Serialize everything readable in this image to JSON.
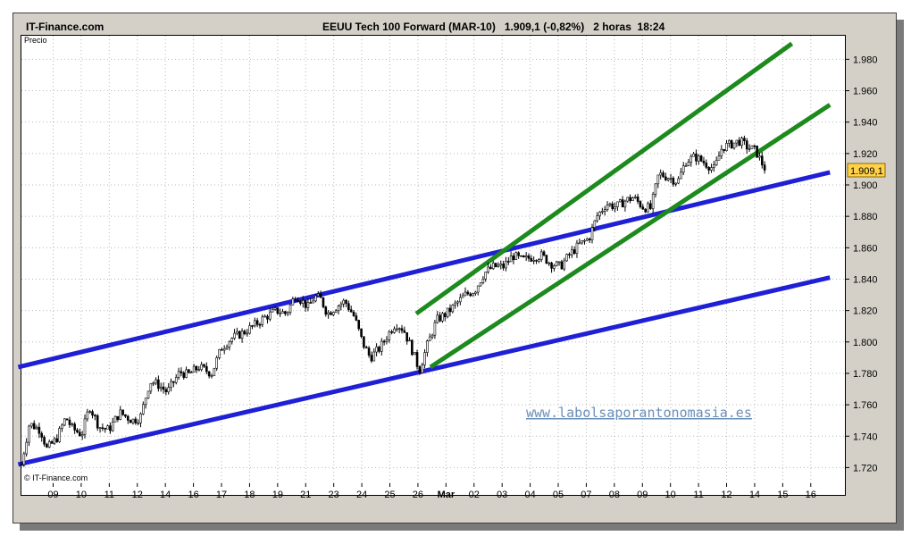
{
  "header": {
    "brand": "IT-Finance.com",
    "title": "EEUU Tech 100 Forward (MAR-10)   1.909,1 (-0,82%)   2 horas  18:24"
  },
  "chart_data": {
    "type": "candlestick",
    "title": "EEUU Tech 100 Forward (MAR-10)",
    "ylabel": "Precio",
    "copyright": "© IT-Finance.com",
    "watermark": "www.labolsaporantonomasia.es",
    "last_price_label": "1.909,1",
    "last_price": 1909.1,
    "change": "-0,82%",
    "interval": "2 horas",
    "time": "18:24",
    "ylim": [
      1710,
      1995
    ],
    "yticks": [
      1720,
      1740,
      1760,
      1780,
      1800,
      1820,
      1840,
      1860,
      1880,
      1900,
      1920,
      1940,
      1960,
      1980
    ],
    "ytick_labels": [
      "1.720",
      "1.740",
      "1.760",
      "1.780",
      "1.800",
      "1.820",
      "1.840",
      "1.860",
      "1.880",
      "1.900",
      "1.920",
      "1.940",
      "1.960",
      "1.980"
    ],
    "xtick_labels": [
      "09",
      "10",
      "11",
      "12",
      "14",
      "16",
      "17",
      "18",
      "19",
      "21",
      "23",
      "24",
      "25",
      "26",
      "Mar",
      "02",
      "03",
      "04",
      "05",
      "07",
      "08",
      "09",
      "10",
      "11",
      "12",
      "14",
      "15",
      "16"
    ],
    "price_path": [
      [
        0,
        1722
      ],
      [
        0.5,
        1748
      ],
      [
        1.2,
        1744
      ],
      [
        1.6,
        1732
      ],
      [
        2.2,
        1738
      ],
      [
        2.8,
        1752
      ],
      [
        3.2,
        1745
      ],
      [
        3.8,
        1741
      ],
      [
        4.3,
        1759
      ],
      [
        4.9,
        1746
      ],
      [
        5.5,
        1744
      ],
      [
        6.2,
        1755
      ],
      [
        7.0,
        1750
      ],
      [
        7.5,
        1752
      ],
      [
        8.1,
        1775
      ],
      [
        8.6,
        1773
      ],
      [
        9.2,
        1768
      ],
      [
        10.0,
        1781
      ],
      [
        10.5,
        1779
      ],
      [
        11.2,
        1784
      ],
      [
        12.0,
        1780
      ],
      [
        12.6,
        1796
      ],
      [
        13.2,
        1802
      ],
      [
        14.0,
        1806
      ],
      [
        14.6,
        1810
      ],
      [
        15.4,
        1816
      ],
      [
        16.1,
        1820
      ],
      [
        16.7,
        1818
      ],
      [
        17.3,
        1830
      ],
      [
        17.7,
        1826
      ],
      [
        18.1,
        1822
      ],
      [
        18.5,
        1829
      ],
      [
        18.9,
        1827
      ],
      [
        19.3,
        1818
      ],
      [
        19.8,
        1822
      ],
      [
        20.4,
        1826
      ],
      [
        21.0,
        1816
      ],
      [
        21.5,
        1800
      ],
      [
        22.0,
        1790
      ],
      [
        22.6,
        1796
      ],
      [
        23.2,
        1806
      ],
      [
        23.6,
        1812
      ],
      [
        24.1,
        1808
      ],
      [
        24.6,
        1796
      ],
      [
        25.1,
        1782
      ],
      [
        25.6,
        1798
      ],
      [
        26.2,
        1814
      ],
      [
        26.8,
        1818
      ],
      [
        27.4,
        1824
      ],
      [
        28.0,
        1830
      ],
      [
        28.6,
        1833
      ],
      [
        29.2,
        1844
      ],
      [
        29.8,
        1848
      ],
      [
        30.4,
        1848
      ],
      [
        31.0,
        1855
      ],
      [
        31.6,
        1852
      ],
      [
        32.2,
        1854
      ],
      [
        32.8,
        1855
      ],
      [
        33.4,
        1850
      ],
      [
        34.0,
        1848
      ],
      [
        34.6,
        1856
      ],
      [
        35.2,
        1862
      ],
      [
        35.8,
        1866
      ],
      [
        36.3,
        1880
      ],
      [
        36.9,
        1888
      ],
      [
        37.5,
        1886
      ],
      [
        38.1,
        1890
      ],
      [
        38.6,
        1892
      ],
      [
        39.2,
        1886
      ],
      [
        39.7,
        1885
      ],
      [
        40.2,
        1907
      ],
      [
        40.8,
        1905
      ],
      [
        41.4,
        1902
      ],
      [
        41.9,
        1915
      ],
      [
        42.5,
        1918
      ],
      [
        43.1,
        1914
      ],
      [
        43.7,
        1910
      ],
      [
        44.2,
        1924
      ],
      [
        44.8,
        1926
      ],
      [
        45.3,
        1928
      ],
      [
        45.8,
        1924
      ],
      [
        46.3,
        1922
      ],
      [
        46.8,
        1912
      ],
      [
        47.0,
        1909.1
      ]
    ],
    "lines": [
      {
        "name": "blue-upper-channel",
        "color": "#1f1fd6",
        "from": [
          -0.2,
          1784
        ],
        "to": [
          51,
          1908
        ]
      },
      {
        "name": "blue-lower-channel",
        "color": "#1f1fd6",
        "from": [
          -0.2,
          1722
        ],
        "to": [
          51,
          1841
        ]
      },
      {
        "name": "green-upper-channel",
        "color": "#1d8a1d",
        "from": [
          24.9,
          1818
        ],
        "to": [
          48.6,
          1990
        ]
      },
      {
        "name": "green-lower-channel",
        "color": "#1d8a1d",
        "from": [
          25.8,
          1784
        ],
        "to": [
          51,
          1951
        ]
      }
    ]
  }
}
